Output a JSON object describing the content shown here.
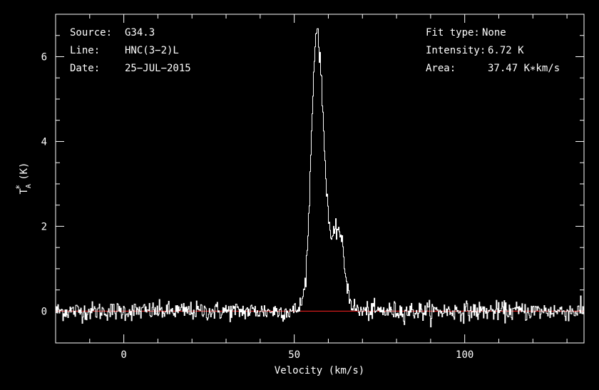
{
  "info_left": [
    {
      "label": "Source:",
      "value": "G34.3"
    },
    {
      "label": "Line:",
      "value": "HNC(3−2)L"
    },
    {
      "label": "Date:",
      "value": "25−JUL−2015"
    }
  ],
  "info_right": [
    {
      "label": "Fit type:",
      "value": "None"
    },
    {
      "label": "Intensity:",
      "value": "6.72 K"
    },
    {
      "label": "Area:",
      "value": "37.47 K∗km/s"
    }
  ],
  "colors": {
    "background": "#000000",
    "axes": "#ffffff",
    "spectrum": "#ffffff",
    "baseline": "#ff2020"
  },
  "chart_data": {
    "type": "line",
    "xlabel": "Velocity (km/s)",
    "ylabel": "T*A (K)",
    "xlim": [
      -20,
      135
    ],
    "ylim": [
      -0.75,
      7.0
    ],
    "xticks": [
      0,
      50,
      100
    ],
    "xtick_labels": [
      "0",
      "50",
      "100"
    ],
    "yticks": [
      0,
      2,
      4,
      6
    ],
    "ytick_labels": [
      "0",
      "2",
      "4",
      "6"
    ],
    "grid": false,
    "baseline_y": 0,
    "series": [
      {
        "style": "step",
        "profile": [
          {
            "x": -20,
            "y": 0.0
          },
          {
            "x": 50,
            "y": 0.0
          },
          {
            "x": 51,
            "y": 0.05
          },
          {
            "x": 52,
            "y": 0.15
          },
          {
            "x": 53,
            "y": 0.5
          },
          {
            "x": 54,
            "y": 1.6
          },
          {
            "x": 55,
            "y": 4.0
          },
          {
            "x": 56,
            "y": 6.2
          },
          {
            "x": 56.5,
            "y": 6.72
          },
          {
            "x": 57,
            "y": 6.55
          },
          {
            "x": 58,
            "y": 5.4
          },
          {
            "x": 59,
            "y": 3.6
          },
          {
            "x": 60,
            "y": 2.3
          },
          {
            "x": 61,
            "y": 1.6
          },
          {
            "x": 62,
            "y": 1.85
          },
          {
            "x": 63,
            "y": 2.0
          },
          {
            "x": 64,
            "y": 1.6
          },
          {
            "x": 65,
            "y": 0.9
          },
          {
            "x": 66,
            "y": 0.4
          },
          {
            "x": 67,
            "y": 0.15
          },
          {
            "x": 68,
            "y": 0.05
          },
          {
            "x": 69,
            "y": 0.0
          },
          {
            "x": 135,
            "y": 0.0
          }
        ],
        "noise_rms": 0.11
      }
    ]
  }
}
